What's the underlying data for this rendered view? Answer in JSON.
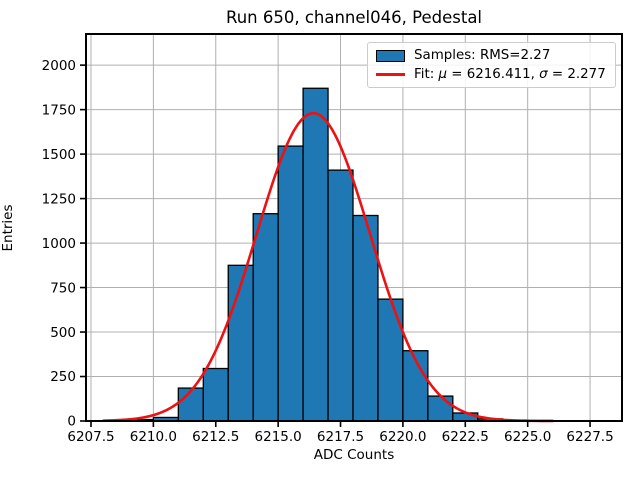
{
  "colors": {
    "bar_fill": "#1f77b4",
    "bar_edge": "#000000",
    "fit_line": "#ee1111",
    "grid": "#b0b0b0",
    "spine": "#000000",
    "text": "#000000",
    "legend_border": "#cccccc"
  },
  "chart_data": {
    "type": "bar",
    "subtype": "histogram",
    "title": "Run 650, channel046, Pedestal",
    "xlabel": "ADC Counts",
    "ylabel": "Entries",
    "bin_width": 1,
    "bin_left_edges": [
      6209,
      6210,
      6211,
      6212,
      6213,
      6214,
      6215,
      6216,
      6217,
      6218,
      6219,
      6220,
      6221,
      6222,
      6223,
      6224,
      6225
    ],
    "counts": [
      8,
      20,
      185,
      295,
      875,
      1165,
      1545,
      1870,
      1410,
      1155,
      685,
      395,
      140,
      45,
      12,
      5,
      3
    ],
    "rms": 2.27,
    "fit": {
      "mu": 6216.411,
      "sigma": 2.277,
      "peak": 1730,
      "x_min": 6208,
      "x_max": 6226
    },
    "x_ticks": [
      6207.5,
      6210.0,
      6212.5,
      6215.0,
      6217.5,
      6220.0,
      6222.5,
      6225.0,
      6227.5
    ],
    "x_tick_labels": [
      "6207.5",
      "6210.0",
      "6212.5",
      "6215.0",
      "6217.5",
      "6220.0",
      "6222.5",
      "6225.0",
      "6227.5"
    ],
    "y_ticks": [
      0,
      250,
      500,
      750,
      1000,
      1250,
      1500,
      1750,
      2000
    ],
    "y_tick_labels": [
      "0",
      "250",
      "500",
      "750",
      "1000",
      "1250",
      "1500",
      "1750",
      "2000"
    ],
    "xlim": [
      6207.3,
      6228.78
    ],
    "ylim": [
      0,
      2175
    ],
    "grid": true,
    "legend_position": "upper right",
    "legend": {
      "samples_label": "Samples: RMS=2.27",
      "fit_label_parts": [
        {
          "text": "Fit: ",
          "italic": false
        },
        {
          "text": "μ",
          "italic": true
        },
        {
          "text": " = 6216.411, ",
          "italic": false
        },
        {
          "text": "σ",
          "italic": true
        },
        {
          "text": " = 2.277",
          "italic": false
        }
      ]
    }
  }
}
